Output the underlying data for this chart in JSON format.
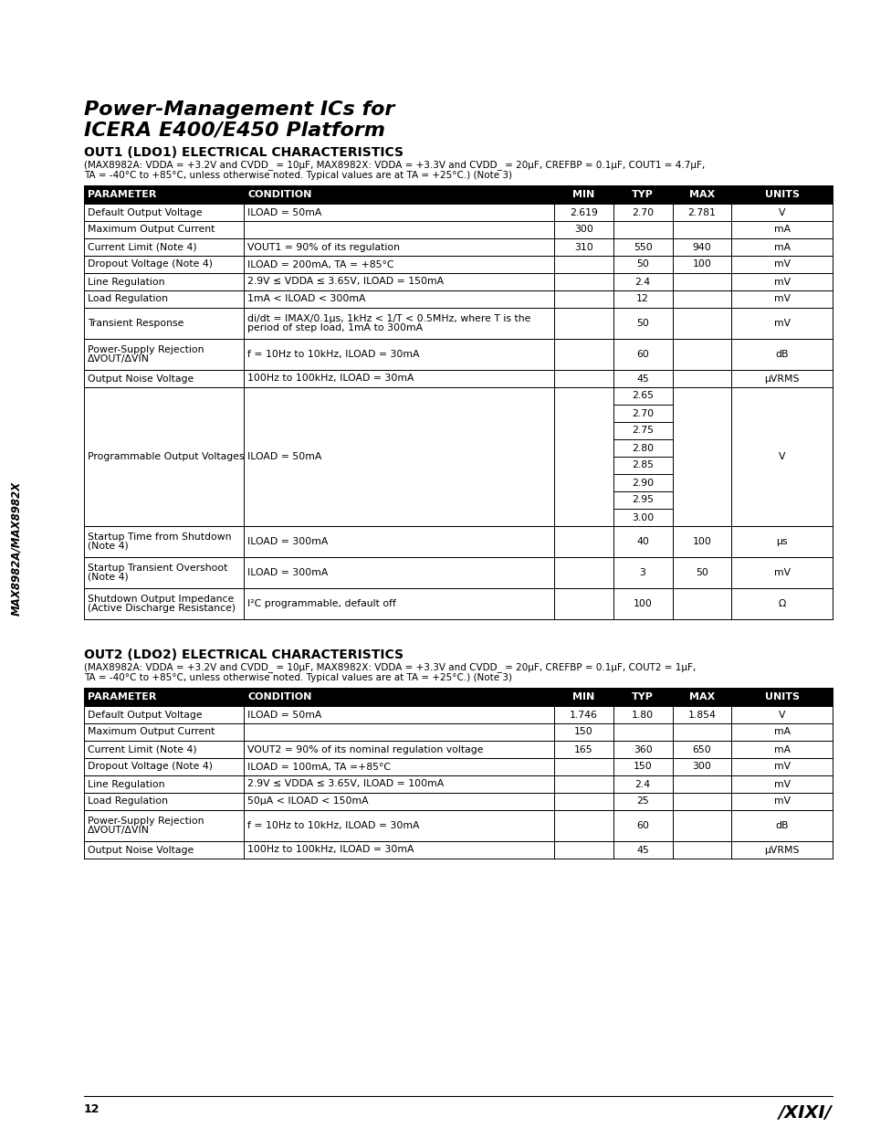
{
  "page_title_line1": "Power-Management ICs for",
  "page_title_line2": "ICERA E400/E450 Platform",
  "page_number": "12",
  "side_text": "MAX8982A/MAX8982X",
  "ldo1_section_title": "OUT1 (LDO1) ELECTRICAL CHARACTERISTICS",
  "ldo1_cond1": "(MAX8982A: VDDA = +3.2V and CVDD_ = 10μF, MAX8982X: VDDA = +3.3V and CVDD_ = 20μF, CREFBP = 0.1μF, COUT1 = 4.7μF,",
  "ldo1_cond2": "TA = -40°C to +85°C, unless otherwise noted. Typical values are at TA = +25°C.) (Note 3)",
  "ldo2_section_title": "OUT2 (LDO2) ELECTRICAL CHARACTERISTICS",
  "ldo2_cond1": "(MAX8982A: VDDA = +3.2V and CVDD_ = 10μF, MAX8982X: VDDA = +3.3V and CVDD_ = 20μF, CREFBP = 0.1μF, COUT2 = 1μF,",
  "ldo2_cond2": "TA = -40°C to +85°C, unless otherwise noted. Typical values are at TA = +25°C.) (Note 3)",
  "headers": [
    "PARAMETER",
    "CONDITION",
    "MIN",
    "TYP",
    "MAX",
    "UNITS"
  ],
  "ldo1_rows": [
    {
      "param": "Default Output Voltage",
      "cond": "ILOAD = 50mA",
      "min": "2.619",
      "typ": "2.70",
      "max": "2.781",
      "units": "V",
      "lines": 1
    },
    {
      "param": "Maximum Output Current",
      "cond": "",
      "min": "300",
      "typ": "",
      "max": "",
      "units": "mA",
      "lines": 1
    },
    {
      "param": "Current Limit (Note 4)",
      "cond": "VOUT1 = 90% of its regulation",
      "min": "310",
      "typ": "550",
      "max": "940",
      "units": "mA",
      "lines": 1
    },
    {
      "param": "Dropout Voltage (Note 4)",
      "cond": "ILOAD = 200mA, TA = +85°C",
      "min": "",
      "typ": "50",
      "max": "100",
      "units": "mV",
      "lines": 1
    },
    {
      "param": "Line Regulation",
      "cond": "2.9V ≤ VDDA ≤ 3.65V, ILOAD = 150mA",
      "min": "",
      "typ": "2.4",
      "max": "",
      "units": "mV",
      "lines": 1
    },
    {
      "param": "Load Regulation",
      "cond": "1mA < ILOAD < 300mA",
      "min": "",
      "typ": "12",
      "max": "",
      "units": "mV",
      "lines": 1
    },
    {
      "param": "Transient Response",
      "cond": "di/dt = IMAX/0.1μs, 1kHz < 1/T < 0.5MHz, where T is the\nperiod of step load, 1mA to 300mA",
      "min": "",
      "typ": "50",
      "max": "",
      "units": "mV",
      "lines": 2
    },
    {
      "param": "Power-Supply Rejection\nΔVOUT/ΔVIN",
      "cond": "f = 10Hz to 10kHz, ILOAD = 30mA",
      "min": "",
      "typ": "60",
      "max": "",
      "units": "dB",
      "lines": 2
    },
    {
      "param": "Output Noise Voltage",
      "cond": "100Hz to 100kHz, ILOAD = 30mA",
      "min": "",
      "typ": "45",
      "max": "",
      "units": "μVRMS",
      "lines": 1
    },
    {
      "param": "Programmable Output Voltages",
      "cond": "ILOAD = 50mA",
      "min": "",
      "typ": [
        "2.65",
        "2.70",
        "2.75",
        "2.80",
        "2.85",
        "2.90",
        "2.95",
        "3.00"
      ],
      "max": "",
      "units": "V",
      "lines": 8
    },
    {
      "param": "Startup Time from Shutdown\n(Note 4)",
      "cond": "ILOAD = 300mA",
      "min": "",
      "typ": "40",
      "max": "100",
      "units": "μs",
      "lines": 2
    },
    {
      "param": "Startup Transient Overshoot\n(Note 4)",
      "cond": "ILOAD = 300mA",
      "min": "",
      "typ": "3",
      "max": "50",
      "units": "mV",
      "lines": 2
    },
    {
      "param": "Shutdown Output Impedance\n(Active Discharge Resistance)",
      "cond": "I²C programmable, default off",
      "min": "",
      "typ": "100",
      "max": "",
      "units": "Ω",
      "lines": 2
    }
  ],
  "ldo2_rows": [
    {
      "param": "Default Output Voltage",
      "cond": "ILOAD = 50mA",
      "min": "1.746",
      "typ": "1.80",
      "max": "1.854",
      "units": "V",
      "lines": 1
    },
    {
      "param": "Maximum Output Current",
      "cond": "",
      "min": "150",
      "typ": "",
      "max": "",
      "units": "mA",
      "lines": 1
    },
    {
      "param": "Current Limit (Note 4)",
      "cond": "VOUT2 = 90% of its nominal regulation voltage",
      "min": "165",
      "typ": "360",
      "max": "650",
      "units": "mA",
      "lines": 1
    },
    {
      "param": "Dropout Voltage (Note 4)",
      "cond": "ILOAD = 100mA, TA =+85°C",
      "min": "",
      "typ": "150",
      "max": "300",
      "units": "mV",
      "lines": 1
    },
    {
      "param": "Line Regulation",
      "cond": "2.9V ≤ VDDA ≤ 3.65V, ILOAD = 100mA",
      "min": "",
      "typ": "2.4",
      "max": "",
      "units": "mV",
      "lines": 1
    },
    {
      "param": "Load Regulation",
      "cond": "50μA < ILOAD < 150mA",
      "min": "",
      "typ": "25",
      "max": "",
      "units": "mV",
      "lines": 1
    },
    {
      "param": "Power-Supply Rejection\nΔVOUT/ΔVIN",
      "cond": "f = 10Hz to 10kHz, ILOAD = 30mA",
      "min": "",
      "typ": "60",
      "max": "",
      "units": "dB",
      "lines": 2
    },
    {
      "param": "Output Noise Voltage",
      "cond": "100Hz to 100kHz, ILOAD = 30mA",
      "min": "",
      "typ": "45",
      "max": "",
      "units": "μVRMS",
      "lines": 1
    }
  ],
  "bg_color": "#ffffff",
  "grid_color": "#000000",
  "header_bg": "#000000",
  "header_fg": "#ffffff"
}
